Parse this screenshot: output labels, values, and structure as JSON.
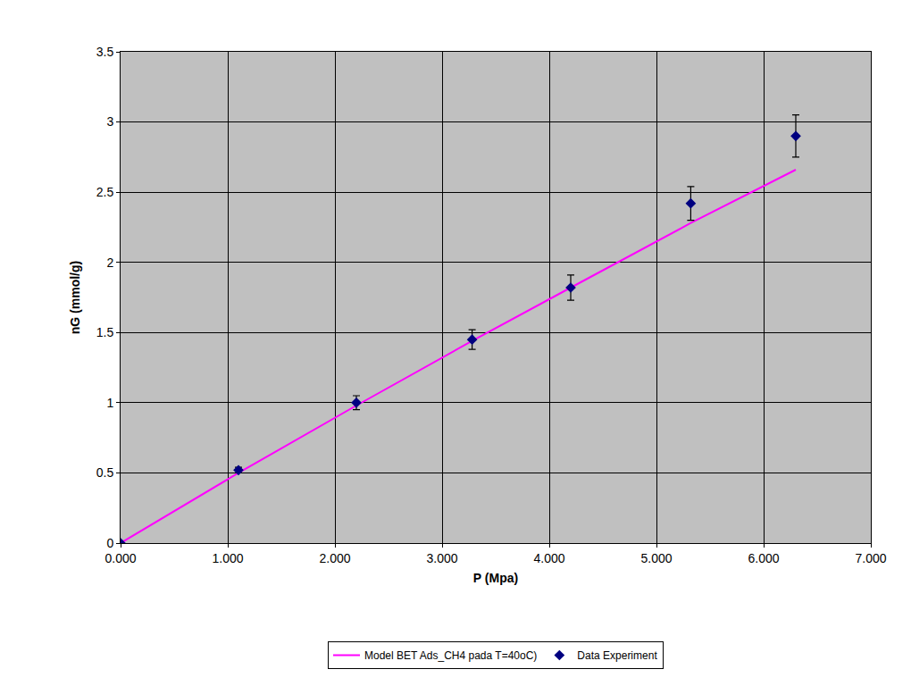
{
  "chart_data": {
    "type": "scatter",
    "x_label": "P (Mpa)",
    "y_label": "nG (mmol/g)",
    "xlim": [
      0,
      7
    ],
    "ylim": [
      0,
      3.5
    ],
    "xticks": [
      {
        "value": 0,
        "label": "0.000"
      },
      {
        "value": 1,
        "label": "1.000"
      },
      {
        "value": 2,
        "label": "2.000"
      },
      {
        "value": 3,
        "label": "3.000"
      },
      {
        "value": 4,
        "label": "4.000"
      },
      {
        "value": 5,
        "label": "5.000"
      },
      {
        "value": 6,
        "label": "6.000"
      },
      {
        "value": 7,
        "label": "7.000"
      }
    ],
    "yticks": [
      0,
      0.5,
      1,
      1.5,
      2,
      2.5,
      3,
      3.5
    ],
    "grid": true,
    "legend": "bottom",
    "series": [
      {
        "name": "Model BET Ads_CH4 pada T=40oC)",
        "type": "line",
        "color": "#ff00ff",
        "line_style": "solid",
        "x": [
          0,
          1.1,
          2.2,
          3.28,
          4.2,
          5.32,
          6.3
        ],
        "values": [
          0,
          0.5,
          0.98,
          1.44,
          1.82,
          2.28,
          2.66
        ]
      },
      {
        "name": "Data Experiment",
        "type": "scatter",
        "color": "#000080",
        "marker": "diamond",
        "x": [
          0,
          1.1,
          2.2,
          3.28,
          4.2,
          5.32,
          6.3
        ],
        "values": [
          0,
          0.52,
          1.0,
          1.45,
          1.82,
          2.42,
          2.9
        ],
        "error": [
          0,
          0.02,
          0.05,
          0.07,
          0.09,
          0.12,
          0.15
        ]
      }
    ]
  }
}
